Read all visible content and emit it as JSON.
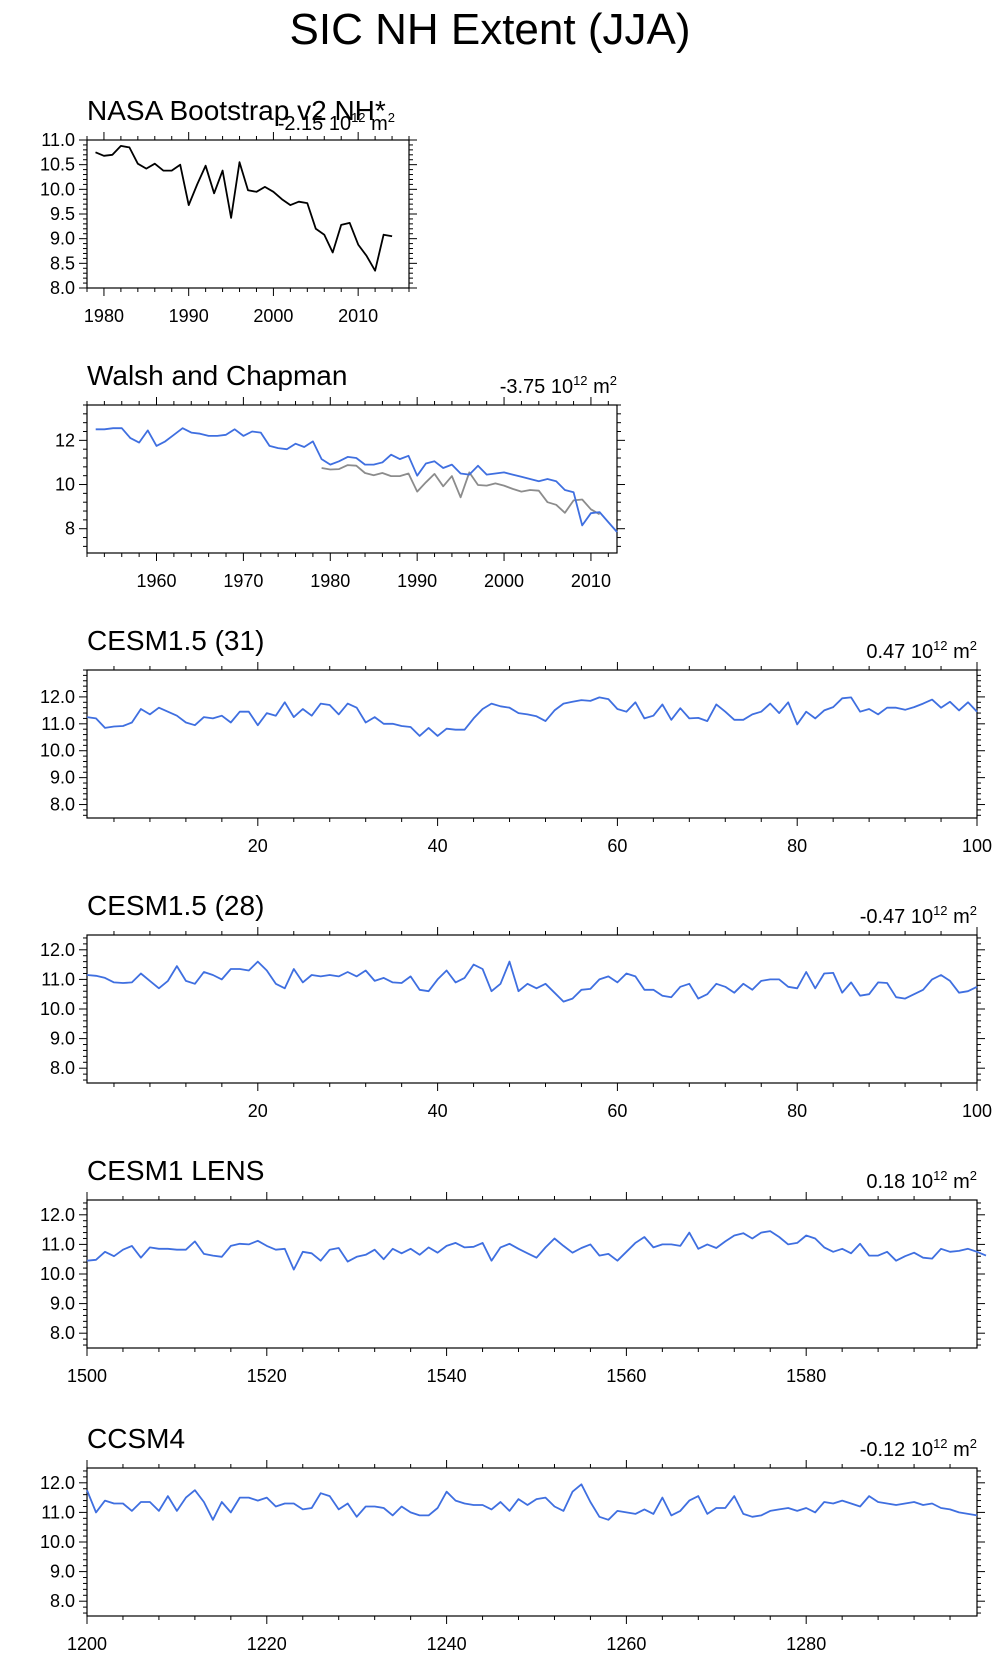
{
  "figure_title": "SIC NH Extent (JJA)",
  "trend_unit": "10",
  "trend_exp": "12",
  "trend_unit_m": "m",
  "trend_unit_sq": "2",
  "colors": {
    "model": "#3f6fe0",
    "obs": "#000000",
    "obs_grey": "#8c8c8c",
    "axis": "#000000"
  },
  "chart_data": [
    {
      "type": "line",
      "title": "NASA Bootstrap v2 NH*",
      "trend": "-2.15",
      "xlim": [
        1978,
        2016
      ],
      "ylim": [
        8.0,
        11.0
      ],
      "xticks": [
        1980,
        1990,
        2000,
        2010
      ],
      "yticks": [
        "8.0",
        "8.5",
        "9.0",
        "9.5",
        "10.0",
        "10.5",
        "11.0"
      ],
      "series": [
        {
          "name": "NASA Bootstrap v2",
          "color": "#000000",
          "x_start": 1979,
          "values": [
            10.75,
            10.68,
            10.7,
            10.88,
            10.85,
            10.52,
            10.42,
            10.52,
            10.38,
            10.38,
            10.5,
            9.68,
            10.1,
            10.48,
            9.92,
            10.38,
            9.42,
            10.55,
            9.98,
            9.95,
            10.05,
            9.95,
            9.8,
            9.68,
            9.75,
            9.72,
            9.2,
            9.08,
            8.72,
            9.28,
            9.32,
            8.88,
            8.65,
            8.35,
            9.08,
            9.05
          ]
        }
      ]
    },
    {
      "type": "line",
      "title": "Walsh and Chapman",
      "trend": "-3.75",
      "xlim": [
        1952,
        2013
      ],
      "ylim": [
        6.9,
        13.6
      ],
      "xticks": [
        1960,
        1970,
        1980,
        1990,
        2000,
        2010
      ],
      "yticks": [
        "8",
        "10",
        "12"
      ],
      "series": [
        {
          "name": "Walsh and Chapman",
          "color": "#3f6fe0",
          "x_start": 1953,
          "values": [
            12.5,
            12.5,
            12.55,
            12.55,
            12.1,
            11.9,
            12.45,
            11.75,
            11.95,
            12.25,
            12.55,
            12.35,
            12.3,
            12.2,
            12.2,
            12.25,
            12.5,
            12.2,
            12.4,
            12.35,
            11.75,
            11.65,
            11.6,
            11.85,
            11.7,
            11.95,
            11.15,
            10.9,
            11.05,
            11.25,
            11.2,
            10.9,
            10.9,
            11.0,
            11.35,
            11.15,
            11.3,
            10.4,
            10.95,
            11.05,
            10.75,
            10.9,
            10.5,
            10.45,
            10.85,
            10.45,
            10.5,
            10.55,
            10.45,
            10.35,
            10.25,
            10.15,
            10.25,
            10.15,
            9.75,
            9.65,
            8.15,
            8.7,
            8.75,
            8.3,
            7.85
          ]
        },
        {
          "name": "NASA Bootstrap v2",
          "color": "#8c8c8c",
          "x_start": 1979,
          "values": [
            10.75,
            10.68,
            10.7,
            10.88,
            10.85,
            10.52,
            10.42,
            10.52,
            10.38,
            10.38,
            10.5,
            9.68,
            10.1,
            10.48,
            9.92,
            10.38,
            9.42,
            10.55,
            9.98,
            9.95,
            10.05,
            9.95,
            9.8,
            9.68,
            9.75,
            9.72,
            9.2,
            9.08,
            8.72,
            9.28,
            9.32,
            8.88,
            8.65
          ]
        }
      ]
    },
    {
      "type": "line",
      "title": "CESM1.5 (31)",
      "trend": "0.47",
      "xlim": [
        1,
        100
      ],
      "ylim": [
        7.5,
        13.0
      ],
      "xticks": [
        20,
        40,
        60,
        80,
        100
      ],
      "yticks": [
        "8.0",
        "9.0",
        "10.0",
        "11.0",
        "12.0"
      ],
      "series": [
        {
          "name": "CESM1.5 (31)",
          "color": "#3f6fe0",
          "x_start": 1,
          "values": [
            11.25,
            11.2,
            10.85,
            10.9,
            10.92,
            11.05,
            11.55,
            11.35,
            11.6,
            11.45,
            11.3,
            11.05,
            10.95,
            11.25,
            11.2,
            11.3,
            11.05,
            11.45,
            11.45,
            10.95,
            11.4,
            11.3,
            11.8,
            11.25,
            11.55,
            11.3,
            11.75,
            11.7,
            11.35,
            11.75,
            11.6,
            11.05,
            11.25,
            11.0,
            11.0,
            10.92,
            10.88,
            10.55,
            10.85,
            10.55,
            10.82,
            10.78,
            10.78,
            11.2,
            11.55,
            11.75,
            11.65,
            11.6,
            11.4,
            11.35,
            11.28,
            11.1,
            11.5,
            11.75,
            11.82,
            11.88,
            11.85,
            11.98,
            11.92,
            11.55,
            11.45,
            11.8,
            11.2,
            11.3,
            11.72,
            11.15,
            11.58,
            11.2,
            11.22,
            11.1,
            11.72,
            11.45,
            11.15,
            11.15,
            11.35,
            11.45,
            11.75,
            11.4,
            11.8,
            10.98,
            11.45,
            11.2,
            11.5,
            11.62,
            11.95,
            11.98,
            11.45,
            11.55,
            11.35,
            11.6,
            11.6,
            11.52,
            11.62,
            11.75,
            11.9,
            11.6,
            11.82,
            11.5,
            11.8,
            11.45
          ]
        }
      ]
    },
    {
      "type": "line",
      "title": "CESM1.5 (28)",
      "trend": "-0.47",
      "xlim": [
        1,
        100
      ],
      "ylim": [
        7.5,
        12.5
      ],
      "xticks": [
        20,
        40,
        60,
        80,
        100
      ],
      "yticks": [
        "8.0",
        "9.0",
        "10.0",
        "11.0",
        "12.0"
      ],
      "series": [
        {
          "name": "CESM1.5 (28)",
          "color": "#3f6fe0",
          "x_start": 1,
          "values": [
            11.15,
            11.12,
            11.05,
            10.9,
            10.88,
            10.9,
            11.2,
            10.95,
            10.7,
            10.95,
            11.45,
            10.95,
            10.85,
            11.25,
            11.15,
            11.0,
            11.35,
            11.35,
            11.3,
            11.6,
            11.3,
            10.85,
            10.7,
            11.35,
            10.9,
            11.15,
            11.1,
            11.15,
            11.1,
            11.25,
            11.1,
            11.3,
            10.95,
            11.05,
            10.9,
            10.88,
            11.1,
            10.65,
            10.6,
            11.0,
            11.3,
            10.9,
            11.05,
            11.5,
            11.35,
            10.6,
            10.85,
            11.6,
            10.6,
            10.85,
            10.7,
            10.85,
            10.55,
            10.25,
            10.35,
            10.65,
            10.68,
            11.0,
            11.1,
            10.9,
            11.2,
            11.1,
            10.65,
            10.65,
            10.45,
            10.4,
            10.75,
            10.85,
            10.35,
            10.5,
            10.85,
            10.75,
            10.55,
            10.85,
            10.65,
            10.95,
            11.0,
            11.0,
            10.75,
            10.7,
            11.25,
            10.7,
            11.2,
            11.22,
            10.55,
            10.9,
            10.45,
            10.5,
            10.9,
            10.88,
            10.4,
            10.35,
            10.5,
            10.65,
            11.0,
            11.15,
            10.95,
            10.55,
            10.6,
            10.75
          ]
        }
      ]
    },
    {
      "type": "line",
      "title": "CESM1 LENS",
      "trend": "0.18",
      "xlim": [
        1500,
        1599
      ],
      "ylim": [
        7.5,
        12.5
      ],
      "xticks": [
        1500,
        1520,
        1540,
        1560,
        1580
      ],
      "yticks": [
        "8.0",
        "9.0",
        "10.0",
        "11.0",
        "12.0"
      ],
      "series": [
        {
          "name": "CESM1 LENS",
          "color": "#3f6fe0",
          "x_start": 1500,
          "values": [
            10.45,
            10.48,
            10.75,
            10.6,
            10.82,
            10.95,
            10.55,
            10.9,
            10.85,
            10.85,
            10.82,
            10.82,
            11.1,
            10.68,
            10.62,
            10.58,
            10.95,
            11.02,
            11.0,
            11.12,
            10.95,
            10.82,
            10.85,
            10.15,
            10.75,
            10.7,
            10.45,
            10.82,
            10.88,
            10.42,
            10.58,
            10.65,
            10.82,
            10.5,
            10.85,
            10.7,
            10.85,
            10.65,
            10.9,
            10.72,
            10.95,
            11.05,
            10.9,
            10.92,
            11.05,
            10.45,
            10.9,
            11.02,
            10.85,
            10.7,
            10.55,
            10.9,
            11.2,
            10.95,
            10.72,
            10.88,
            11.0,
            10.62,
            10.68,
            10.45,
            10.75,
            11.05,
            11.25,
            10.9,
            11.0,
            11.0,
            10.95,
            11.4,
            10.85,
            11.0,
            10.88,
            11.1,
            11.3,
            11.38,
            11.2,
            11.4,
            11.45,
            11.25,
            11.0,
            11.05,
            11.3,
            11.2,
            10.9,
            10.75,
            10.85,
            10.7,
            11.02,
            10.62,
            10.62,
            10.75,
            10.45,
            10.6,
            10.72,
            10.55,
            10.52,
            10.85,
            10.75,
            10.78,
            10.85,
            10.75,
            10.62
          ]
        }
      ]
    },
    {
      "type": "line",
      "title": "CCSM4",
      "trend": "-0.12",
      "xlim": [
        1200,
        1299
      ],
      "ylim": [
        7.5,
        12.5
      ],
      "xticks": [
        1200,
        1220,
        1240,
        1260,
        1280
      ],
      "yticks": [
        "8.0",
        "9.0",
        "10.0",
        "11.0",
        "12.0"
      ],
      "series": [
        {
          "name": "CCSM4",
          "color": "#3f6fe0",
          "x_start": 1200,
          "values": [
            11.75,
            11.0,
            11.4,
            11.3,
            11.3,
            11.05,
            11.35,
            11.35,
            11.05,
            11.55,
            11.05,
            11.5,
            11.75,
            11.35,
            10.75,
            11.35,
            11.0,
            11.5,
            11.5,
            11.4,
            11.5,
            11.2,
            11.3,
            11.3,
            11.1,
            11.15,
            11.65,
            11.55,
            11.1,
            11.3,
            10.85,
            11.2,
            11.2,
            11.15,
            10.9,
            11.2,
            11.0,
            10.9,
            10.9,
            11.15,
            11.7,
            11.4,
            11.3,
            11.25,
            11.25,
            11.1,
            11.35,
            11.05,
            11.45,
            11.25,
            11.45,
            11.5,
            11.2,
            11.05,
            11.7,
            11.95,
            11.35,
            10.85,
            10.75,
            11.05,
            11.0,
            10.95,
            11.1,
            10.95,
            11.5,
            10.9,
            11.05,
            11.4,
            11.55,
            10.95,
            11.15,
            11.15,
            11.55,
            10.95,
            10.85,
            10.9,
            11.05,
            11.1,
            11.15,
            11.05,
            11.15,
            11.0,
            11.35,
            11.3,
            11.4,
            11.3,
            11.2,
            11.55,
            11.35,
            11.3,
            11.25,
            11.3,
            11.35,
            11.25,
            11.3,
            11.15,
            11.1,
            11.0,
            10.95,
            10.9
          ]
        }
      ]
    }
  ]
}
